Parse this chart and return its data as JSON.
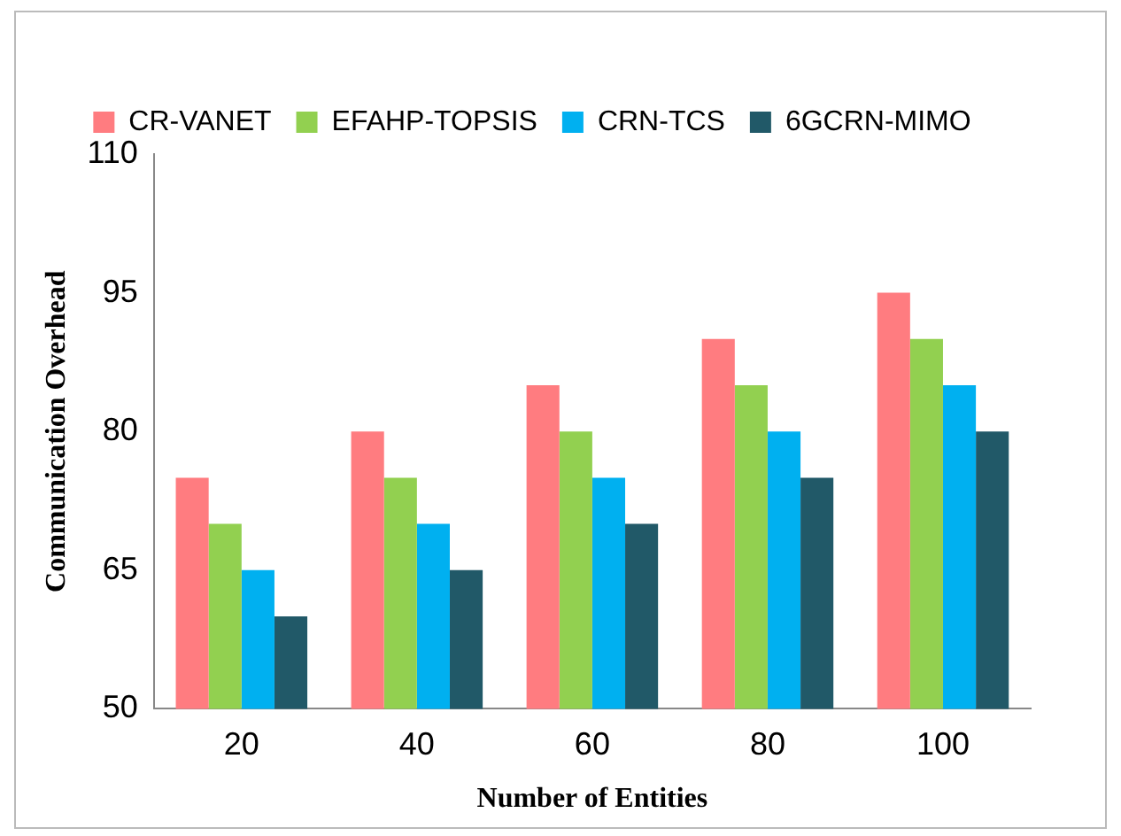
{
  "chart_data": {
    "type": "bar",
    "xlabel": "Number of Entities",
    "ylabel": "Communication Overhead",
    "categories": [
      "20",
      "40",
      "60",
      "80",
      "100"
    ],
    "series": [
      {
        "name": "CR-VANET",
        "color": "#ff7c80",
        "values": [
          75,
          80,
          85,
          90,
          95
        ]
      },
      {
        "name": "EFAHP-TOPSIS",
        "color": "#92d050",
        "values": [
          70,
          75,
          80,
          85,
          90
        ]
      },
      {
        "name": "CRN-TCS",
        "color": "#00b0f0",
        "values": [
          65,
          70,
          75,
          80,
          85
        ]
      },
      {
        "name": "6GCRN-MIMO",
        "color": "#215968",
        "values": [
          60,
          65,
          70,
          75,
          80
        ]
      }
    ],
    "ylim": [
      50,
      110
    ],
    "yticks": [
      50,
      65,
      80,
      95,
      110
    ],
    "grid": false,
    "legend": "top"
  }
}
